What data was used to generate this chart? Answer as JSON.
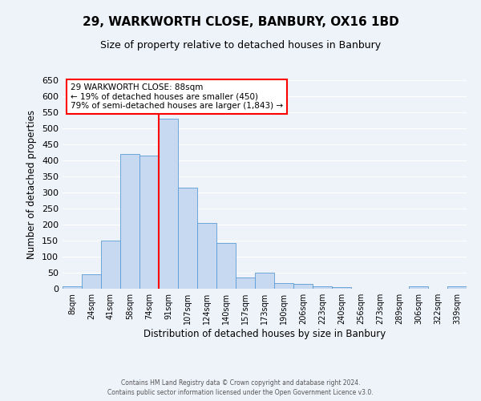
{
  "title": "29, WARKWORTH CLOSE, BANBURY, OX16 1BD",
  "subtitle": "Size of property relative to detached houses in Banbury",
  "xlabel": "Distribution of detached houses by size in Banbury",
  "ylabel": "Number of detached properties",
  "bin_labels": [
    "8sqm",
    "24sqm",
    "41sqm",
    "58sqm",
    "74sqm",
    "91sqm",
    "107sqm",
    "124sqm",
    "140sqm",
    "157sqm",
    "173sqm",
    "190sqm",
    "206sqm",
    "223sqm",
    "240sqm",
    "256sqm",
    "273sqm",
    "289sqm",
    "306sqm",
    "322sqm",
    "339sqm"
  ],
  "bar_values": [
    8,
    45,
    150,
    420,
    415,
    530,
    315,
    205,
    143,
    35,
    50,
    17,
    14,
    8,
    5,
    0,
    0,
    0,
    7,
    0,
    7
  ],
  "bar_color": "#c6d9f0",
  "bar_edge_color": "#5b9bd5",
  "vline_color": "red",
  "ylim": [
    0,
    650
  ],
  "yticks": [
    0,
    50,
    100,
    150,
    200,
    250,
    300,
    350,
    400,
    450,
    500,
    550,
    600,
    650
  ],
  "annotation_line1": "29 WARKWORTH CLOSE: 88sqm",
  "annotation_line2": "← 19% of detached houses are smaller (450)",
  "annotation_line3": "79% of semi-detached houses are larger (1,843) →",
  "annotation_box_color": "#ffffff",
  "annotation_box_edge": "red",
  "footer1": "Contains HM Land Registry data © Crown copyright and database right 2024.",
  "footer2": "Contains public sector information licensed under the Open Government Licence v3.0.",
  "background_color": "#eef2f9",
  "plot_bg_color": "#eef2f9",
  "grid_color": "#ffffff",
  "title_fontsize": 11,
  "subtitle_fontsize": 9
}
